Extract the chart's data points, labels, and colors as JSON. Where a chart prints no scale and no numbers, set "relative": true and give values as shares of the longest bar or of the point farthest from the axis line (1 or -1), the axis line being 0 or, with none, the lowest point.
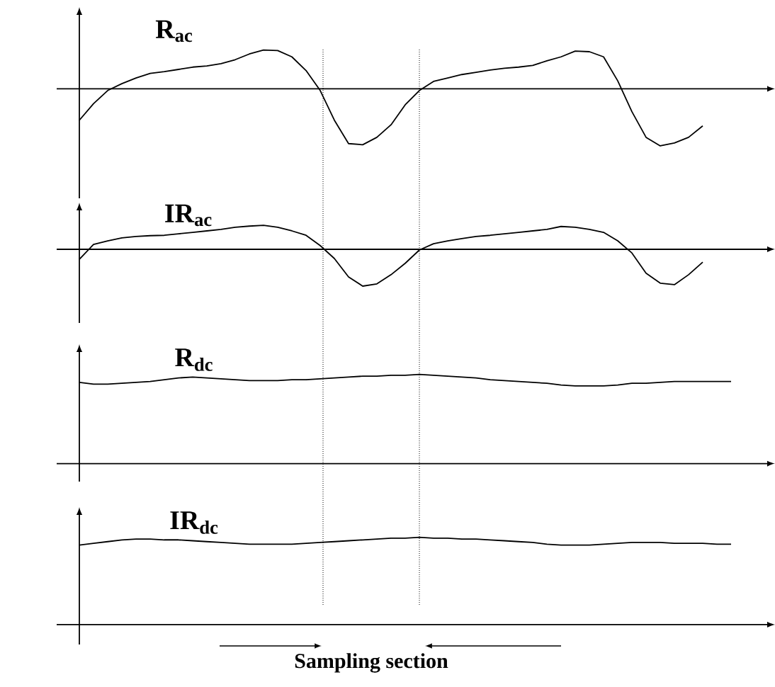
{
  "chart_data": [
    {
      "type": "line",
      "title": "R$_{ac}$",
      "relative": true,
      "color": "#000000",
      "marker": "none",
      "line_style": "solid",
      "categories": [
        null,
        null,
        null,
        null,
        null,
        null,
        null,
        null,
        null,
        null,
        null,
        null,
        null,
        null,
        null,
        null,
        null,
        null,
        null,
        null,
        null,
        null,
        null,
        null,
        null,
        null,
        null,
        null,
        null,
        null,
        null,
        null,
        null,
        null,
        null,
        null,
        null,
        null,
        null,
        null,
        null,
        null,
        null,
        null,
        null,
        null,
        null,
        null,
        null,
        null
      ],
      "values": [
        -0.55,
        -0.26,
        -0.03,
        0.09,
        0.19,
        0.27,
        0.3,
        0.34,
        0.38,
        0.4,
        0.44,
        0.51,
        0.61,
        0.68,
        0.67,
        0.56,
        0.32,
        -0.03,
        -0.55,
        -0.96,
        -0.98,
        -0.85,
        -0.63,
        -0.28,
        -0.03,
        0.13,
        0.19,
        0.25,
        0.29,
        0.33,
        0.36,
        0.38,
        0.41,
        0.49,
        0.56,
        0.66,
        0.65,
        0.56,
        0.14,
        -0.4,
        -0.85,
        -1,
        -0.95,
        -0.85,
        -0.65,
        null,
        null,
        null,
        null,
        null
      ]
    },
    {
      "type": "line",
      "title": "IR$_{ac}$",
      "relative": true,
      "color": "#000000",
      "marker": "none",
      "line_style": "solid",
      "categories": [
        null,
        null,
        null,
        null,
        null,
        null,
        null,
        null,
        null,
        null,
        null,
        null,
        null,
        null,
        null,
        null,
        null,
        null,
        null,
        null,
        null,
        null,
        null,
        null,
        null,
        null,
        null,
        null,
        null,
        null,
        null,
        null,
        null,
        null,
        null,
        null,
        null,
        null,
        null,
        null,
        null,
        null,
        null,
        null,
        null,
        null,
        null,
        null,
        null,
        null
      ],
      "values": [
        -0.27,
        0.13,
        0.23,
        0.31,
        0.35,
        0.37,
        0.38,
        0.42,
        0.46,
        0.5,
        0.54,
        0.6,
        0.63,
        0.65,
        0.6,
        0.5,
        0.38,
        0.1,
        -0.25,
        -0.75,
        -1,
        -0.94,
        -0.69,
        -0.38,
        -0.02,
        0.15,
        0.23,
        0.29,
        0.35,
        0.38,
        0.42,
        0.46,
        0.5,
        0.54,
        0.62,
        0.6,
        0.54,
        0.46,
        0.23,
        -0.1,
        -0.65,
        -0.92,
        -0.96,
        -0.69,
        -0.35,
        null,
        null,
        null,
        null,
        null
      ]
    },
    {
      "type": "line",
      "title": "R$_{dc}$",
      "relative": true,
      "color": "#000000",
      "marker": "none",
      "line_style": "solid",
      "categories": [
        null,
        null,
        null,
        null,
        null,
        null,
        null,
        null,
        null,
        null,
        null,
        null,
        null,
        null,
        null,
        null,
        null,
        null,
        null,
        null,
        null,
        null,
        null,
        null,
        null,
        null,
        null,
        null,
        null,
        null,
        null,
        null,
        null,
        null,
        null,
        null,
        null,
        null,
        null,
        null,
        null,
        null,
        null,
        null,
        null,
        null,
        null,
        null,
        null,
        null
      ],
      "values": [
        0.91,
        0.89,
        0.89,
        0.9,
        0.91,
        0.92,
        0.94,
        0.96,
        0.97,
        0.96,
        0.95,
        0.94,
        0.93,
        0.93,
        0.93,
        0.94,
        0.94,
        0.95,
        0.96,
        0.97,
        0.98,
        0.98,
        0.99,
        0.99,
        1,
        0.99,
        0.98,
        0.97,
        0.96,
        0.94,
        0.93,
        0.92,
        0.91,
        0.9,
        0.88,
        0.87,
        0.87,
        0.87,
        0.88,
        0.9,
        0.9,
        0.91,
        0.92,
        0.92,
        0.92,
        0.92,
        0.92,
        null,
        null,
        null
      ]
    },
    {
      "type": "line",
      "title": "IR$_{dc}$",
      "relative": true,
      "color": "#000000",
      "marker": "none",
      "line_style": "solid",
      "categories": [
        null,
        null,
        null,
        null,
        null,
        null,
        null,
        null,
        null,
        null,
        null,
        null,
        null,
        null,
        null,
        null,
        null,
        null,
        null,
        null,
        null,
        null,
        null,
        null,
        null,
        null,
        null,
        null,
        null,
        null,
        null,
        null,
        null,
        null,
        null,
        null,
        null,
        null,
        null,
        null,
        null,
        null,
        null,
        null,
        null,
        null,
        null,
        null,
        null,
        null
      ],
      "values": [
        0.91,
        0.93,
        0.95,
        0.97,
        0.98,
        0.98,
        0.97,
        0.97,
        0.96,
        0.95,
        0.94,
        0.93,
        0.92,
        0.92,
        0.92,
        0.92,
        0.93,
        0.94,
        0.95,
        0.96,
        0.97,
        0.98,
        0.99,
        0.99,
        1,
        0.99,
        0.99,
        0.98,
        0.98,
        0.97,
        0.96,
        0.95,
        0.94,
        0.92,
        0.91,
        0.91,
        0.91,
        0.92,
        0.93,
        0.94,
        0.94,
        0.94,
        0.93,
        0.93,
        0.93,
        0.92,
        0.92,
        null,
        null,
        null
      ],
      "annotations": [
        "Sampling section"
      ]
    }
  ]
}
